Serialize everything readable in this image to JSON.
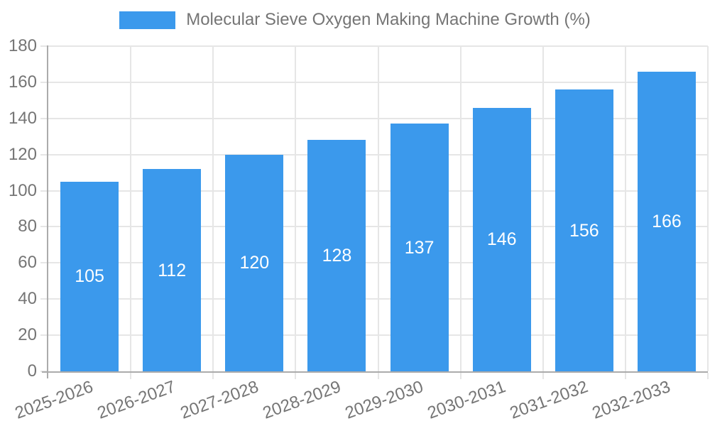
{
  "window": {
    "background": "#FFFFFF"
  },
  "colors": {
    "bar": "#3B99EC",
    "grid": "#E6E6E6",
    "axis": "#ABABAB",
    "text": "#757575",
    "bar_label_text": "#FFFFFF"
  },
  "legend": {
    "label": "Molecular Sieve Oxygen Making Machine Growth (%)"
  },
  "chart_data": {
    "type": "bar",
    "title": "Molecular Sieve Oxygen Making Machine Growth (%)",
    "categories": [
      "2025-2026",
      "2026-2027",
      "2027-2028",
      "2028-2029",
      "2029-2030",
      "2030-2031",
      "2031-2032",
      "2032-2033"
    ],
    "series": [
      {
        "name": "Molecular Sieve Oxygen Making Machine Growth (%)",
        "values": [
          105,
          112,
          120,
          128,
          137,
          146,
          156,
          166
        ]
      }
    ],
    "xlabel": "",
    "ylabel": "",
    "ylim": [
      0,
      180
    ],
    "ytick_step": 20,
    "ytick_labels": [
      "0",
      "20",
      "40",
      "60",
      "80",
      "100",
      "120",
      "140",
      "160",
      "180"
    ],
    "grid": true,
    "legend_position": "top-center",
    "value_labels": "inside-middle",
    "xtick_rotation_deg": -20
  }
}
